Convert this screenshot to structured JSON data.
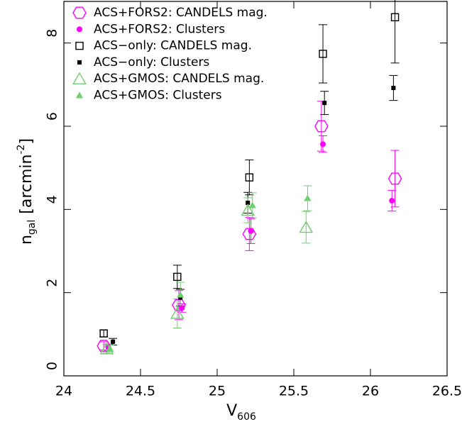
{
  "chart_data": {
    "type": "scatter",
    "x_label": {
      "main": "V",
      "sub": "606"
    },
    "y_label": {
      "main": "n",
      "sub": "gal",
      "unit": "[arcmin",
      "sup": "-2",
      "close": "]"
    },
    "xlim": [
      24,
      26.5
    ],
    "ylim": [
      0,
      9
    ],
    "xticks": [
      24,
      24.5,
      25,
      25.5,
      26,
      26.5
    ],
    "yticks": [
      0,
      2,
      4,
      6,
      8
    ],
    "legend": "top-left",
    "series": [
      {
        "name": "ACS+FORS2: CANDELS mag.",
        "color": "#ff00ff",
        "marker": "hexagon-open",
        "x": [
          24.26,
          24.75,
          25.21,
          25.68,
          26.16
        ],
        "values": [
          0.72,
          1.7,
          3.41,
          6.0,
          4.74
        ],
        "errors": [
          0.1,
          0.35,
          0.4,
          0.6,
          0.68
        ]
      },
      {
        "name": "ACS+FORS2: Clusters",
        "color": "#ff00ff",
        "marker": "circle-filled",
        "x": [
          24.29,
          24.77,
          25.22,
          25.69,
          26.14
        ],
        "values": [
          0.68,
          1.63,
          3.48,
          5.57,
          4.21
        ],
        "errors": [
          0.08,
          0.1,
          0.3,
          0.2,
          0.25
        ]
      },
      {
        "name": "ACS−only: CANDELS mag.",
        "color": "#000000",
        "marker": "square-open",
        "x": [
          24.26,
          24.74,
          25.21,
          25.69,
          26.16
        ],
        "values": [
          1.02,
          2.38,
          4.77,
          7.74,
          8.62
        ],
        "errors": [
          0.08,
          0.28,
          0.42,
          0.7,
          1.1
        ]
      },
      {
        "name": "ACS−only: Clusters",
        "color": "#000000",
        "marker": "square-filled",
        "x": [
          24.32,
          24.76,
          25.2,
          25.7,
          26.15
        ],
        "values": [
          0.82,
          1.88,
          4.16,
          6.56,
          6.92
        ],
        "errors": [
          0.08,
          0.2,
          0.25,
          0.28,
          0.3
        ]
      },
      {
        "name": "ACS+GMOS: CANDELS mag.",
        "color": "#6ecf6e",
        "marker": "triangle-open",
        "x": [
          24.28,
          24.74,
          25.2,
          25.58
        ],
        "values": [
          0.65,
          1.5,
          3.98,
          3.57
        ],
        "errors": [
          0.1,
          0.35,
          0.3,
          0.38
        ]
      },
      {
        "name": "ACS+GMOS: Clusters",
        "color": "#6ecf6e",
        "marker": "triangle-filled",
        "x": [
          24.3,
          24.76,
          25.23,
          25.59
        ],
        "values": [
          0.66,
          1.95,
          4.1,
          4.27
        ],
        "errors": [
          0.08,
          0.3,
          0.3,
          0.3
        ]
      }
    ]
  }
}
